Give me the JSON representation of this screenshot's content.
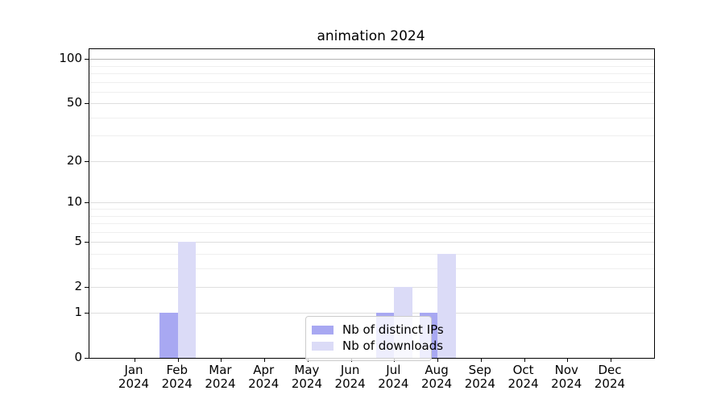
{
  "chart_data": {
    "type": "bar",
    "title": "animation 2024",
    "categories": [
      "Jan",
      "Feb",
      "Mar",
      "Apr",
      "May",
      "Jun",
      "Jul",
      "Aug",
      "Sep",
      "Oct",
      "Nov",
      "Dec"
    ],
    "category_year": "2024",
    "series": [
      {
        "name": "Nb of distinct IPs",
        "color": "#a8a8f2",
        "values": [
          0,
          1,
          0,
          0,
          0,
          0,
          1,
          1,
          0,
          0,
          0,
          0
        ]
      },
      {
        "name": "Nb of downloads",
        "color": "#dbdbf7",
        "values": [
          0,
          5,
          0,
          0,
          0,
          0,
          2,
          4,
          0,
          0,
          0,
          0
        ]
      }
    ],
    "y_axis": {
      "scale": "log1p",
      "ticks": [
        0,
        1,
        2,
        5,
        10,
        20,
        50,
        100
      ],
      "minor_gridlines": [
        3,
        4,
        6,
        7,
        8,
        9,
        30,
        40,
        60,
        70,
        80,
        90
      ],
      "ylim": [
        0,
        117
      ]
    },
    "x_axis": {
      "tick_labels_two_lines": true
    },
    "grid": "horizontal major and minor",
    "legend_position": "inside bottom-center",
    "colors": {
      "grid_major": "#dedede",
      "grid_minor": "#efefef",
      "grid_top_major": "#b4b4b4",
      "axis": "#000000",
      "background": "#ffffff"
    }
  }
}
